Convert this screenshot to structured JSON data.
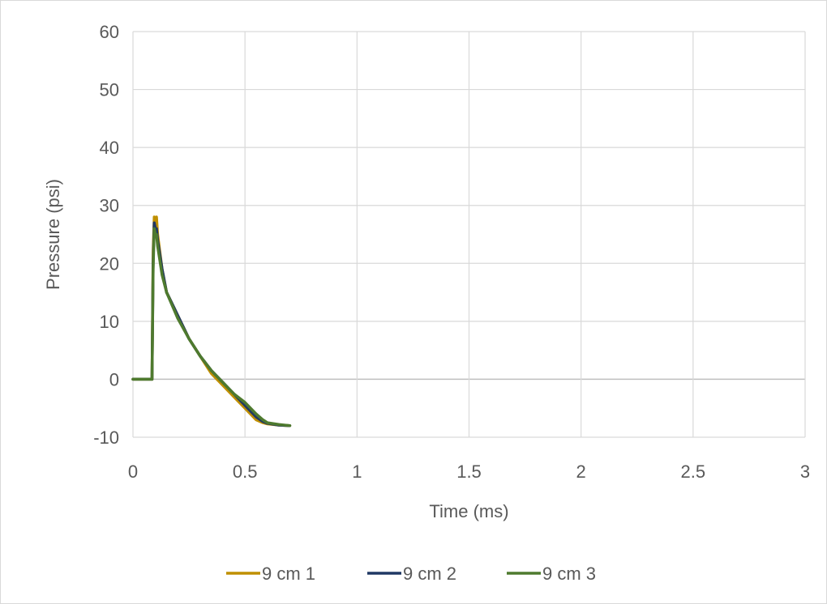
{
  "chart_data": {
    "type": "line",
    "title": "",
    "xlabel": "Time (ms)",
    "ylabel": "Pressure (psi)",
    "xlim": [
      0,
      3
    ],
    "ylim": [
      -10,
      60
    ],
    "xticks": [
      0,
      0.5,
      1,
      1.5,
      2,
      2.5,
      3
    ],
    "xtick_labels": [
      "0",
      "0.5",
      "1",
      "1.5",
      "2",
      "2.5",
      "3"
    ],
    "yticks": [
      -10,
      0,
      10,
      20,
      30,
      40,
      50,
      60
    ],
    "ytick_labels": [
      "-10",
      "0",
      "10",
      "20",
      "30",
      "40",
      "50",
      "60"
    ],
    "grid": true,
    "legend": "bottom",
    "series": [
      {
        "name": "9 cm 1",
        "color": "#bf8f00",
        "x": [
          0,
          0.05,
          0.075,
          0.08,
          0.085,
          0.09,
          0.095,
          0.1,
          0.105,
          0.11,
          0.13,
          0.15,
          0.2,
          0.25,
          0.3,
          0.35,
          0.4,
          0.45,
          0.5,
          0.55,
          0.58,
          0.6,
          0.65,
          0.7
        ],
        "y": [
          0,
          0,
          0,
          0,
          0,
          22,
          28,
          27,
          28,
          25,
          19,
          15,
          11,
          7,
          4,
          1,
          -1,
          -3,
          -5,
          -7,
          -7.5,
          -7.7,
          -7.9,
          -8
        ]
      },
      {
        "name": "9 cm 2",
        "color": "#203864",
        "x": [
          0,
          0.05,
          0.075,
          0.08,
          0.085,
          0.09,
          0.095,
          0.1,
          0.105,
          0.11,
          0.13,
          0.15,
          0.2,
          0.25,
          0.3,
          0.35,
          0.4,
          0.45,
          0.5,
          0.55,
          0.58,
          0.6,
          0.65,
          0.7
        ],
        "y": [
          0,
          0,
          0,
          0,
          0,
          20,
          27,
          26,
          26,
          24,
          19,
          15,
          11,
          7,
          4,
          1.5,
          -0.5,
          -2.5,
          -4.5,
          -6.5,
          -7.3,
          -7.6,
          -7.9,
          -8
        ]
      },
      {
        "name": "9 cm 3",
        "color": "#4e7a2e",
        "x": [
          0,
          0.05,
          0.075,
          0.08,
          0.085,
          0.09,
          0.095,
          0.1,
          0.105,
          0.11,
          0.13,
          0.15,
          0.2,
          0.25,
          0.3,
          0.35,
          0.4,
          0.45,
          0.5,
          0.55,
          0.58,
          0.6,
          0.65,
          0.7
        ],
        "y": [
          0,
          0,
          0,
          0,
          0,
          19,
          26,
          25,
          25,
          23,
          18,
          15,
          10.5,
          7,
          4,
          1.5,
          -0.5,
          -2.5,
          -4,
          -6,
          -7,
          -7.5,
          -7.8,
          -8
        ]
      }
    ]
  }
}
